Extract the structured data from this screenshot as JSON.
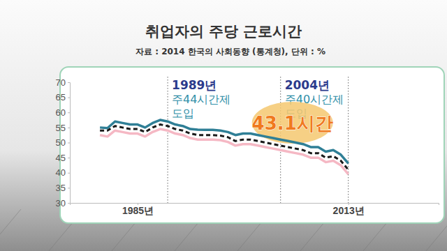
{
  "chart_data": {
    "type": "line",
    "title": "취업자의 주당 근로시간",
    "subtitle": "자료 : 2014 한국의 사회동향 (통계청), 단위 : %",
    "x": [
      1980,
      1981,
      1982,
      1983,
      1984,
      1985,
      1986,
      1987,
      1988,
      1989,
      1990,
      1991,
      1992,
      1993,
      1994,
      1995,
      1996,
      1997,
      1998,
      1999,
      2000,
      2001,
      2002,
      2003,
      2004,
      2005,
      2006,
      2007,
      2008,
      2009,
      2010,
      2011,
      2012,
      2013
    ],
    "series": [
      {
        "color": "#2f7f96",
        "line_style": "solid",
        "values": [
          55.0,
          54.8,
          57.0,
          56.5,
          56.0,
          56.0,
          55.0,
          56.5,
          57.5,
          57.0,
          56.0,
          55.5,
          54.5,
          54.3,
          54.2,
          54.2,
          54.0,
          53.5,
          52.5,
          53.0,
          53.0,
          52.5,
          52.0,
          51.5,
          51.0,
          50.5,
          50.0,
          49.5,
          48.5,
          48.5,
          47.0,
          47.5,
          46.0,
          43.1
        ]
      },
      {
        "color": "#1a1a1a",
        "line_style": "dashed",
        "values": [
          54.0,
          54.0,
          55.5,
          55.0,
          54.5,
          54.5,
          53.5,
          55.0,
          56.0,
          55.5,
          54.5,
          54.0,
          53.0,
          52.5,
          52.5,
          52.5,
          52.3,
          51.8,
          50.5,
          51.0,
          51.0,
          50.5,
          50.0,
          49.5,
          49.0,
          48.5,
          48.0,
          47.5,
          46.5,
          46.5,
          45.0,
          45.5,
          44.0,
          41.0
        ]
      },
      {
        "color": "#f5b8c4",
        "line_style": "solid",
        "values": [
          52.5,
          52.0,
          54.0,
          53.5,
          53.0,
          53.0,
          52.0,
          53.5,
          54.5,
          54.0,
          53.0,
          52.5,
          51.5,
          51.0,
          51.0,
          51.0,
          50.8,
          50.2,
          49.0,
          49.5,
          49.5,
          49.0,
          48.5,
          48.0,
          47.5,
          47.0,
          46.5,
          46.0,
          45.0,
          45.0,
          43.5,
          44.0,
          42.5,
          39.5
        ]
      }
    ],
    "xlim": [
      1976,
      2025
    ],
    "xticks": [
      {
        "value": 1985,
        "label": "1985년"
      },
      {
        "value": 2013,
        "label": "2013년"
      }
    ],
    "ylim": [
      30,
      70
    ],
    "yticks": [
      30,
      35,
      40,
      45,
      50,
      55,
      60,
      65,
      70
    ],
    "grid": false,
    "annotations": [
      {
        "x": 1989,
        "lines": [
          "1989년",
          "주44시간제",
          "도입"
        ]
      },
      {
        "x": 2004,
        "lines": [
          "2004년",
          "주40시간제",
          "도입"
        ]
      },
      {
        "x": 2013,
        "lines": [
          "43.1시간"
        ]
      }
    ]
  }
}
